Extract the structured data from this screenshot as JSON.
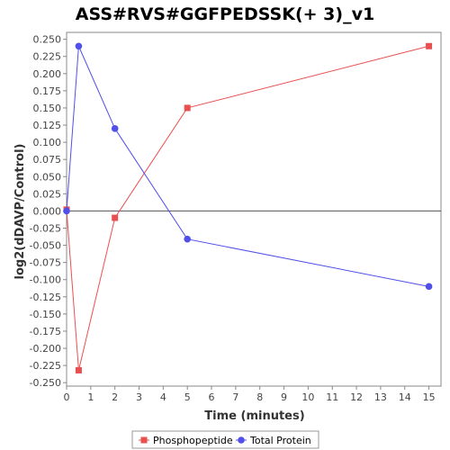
{
  "chart_data": {
    "type": "line",
    "title": "ASS#RVS#GGFPEDSSK(+ 3)_v1",
    "xlabel": "Time (minutes)",
    "ylabel": "log2(dDAVP/Control)",
    "xlim": [
      0,
      15.5
    ],
    "ylim": [
      -0.255,
      0.26
    ],
    "x_ticks": [
      0,
      1,
      2,
      3,
      4,
      5,
      6,
      7,
      8,
      9,
      10,
      11,
      12,
      13,
      14,
      15
    ],
    "y_ticks": [
      0.25,
      0.225,
      0.2,
      0.175,
      0.15,
      0.125,
      0.1,
      0.075,
      0.05,
      0.025,
      0.0,
      -0.025,
      -0.05,
      -0.075,
      -0.1,
      -0.125,
      -0.15,
      -0.175,
      -0.2,
      -0.225,
      -0.25
    ],
    "y_tick_labels": [
      "0.250",
      "0.225",
      "0.200",
      "0.175",
      "0.150",
      "0.125",
      "0.100",
      "0.075",
      "0.050",
      "0.025",
      "0.000",
      "-0.025",
      "-0.050",
      "-0.075",
      "-0.100",
      "-0.125",
      "-0.150",
      "-0.175",
      "-0.200",
      "-0.225",
      "-0.250"
    ],
    "zero_line": true,
    "grid": false,
    "legend_position": "bottom",
    "series": [
      {
        "name": "Phosphopeptide",
        "color": "#e8504f",
        "marker": "square",
        "x": [
          0,
          0.5,
          2,
          5,
          15
        ],
        "y": [
          0.002,
          -0.232,
          -0.01,
          0.15,
          0.24
        ]
      },
      {
        "name": "Total Protein",
        "color": "#5050e8",
        "marker": "circle",
        "x": [
          0,
          0.5,
          2,
          5,
          15
        ],
        "y": [
          0.0,
          0.24,
          0.12,
          -0.041,
          -0.11
        ]
      }
    ]
  }
}
